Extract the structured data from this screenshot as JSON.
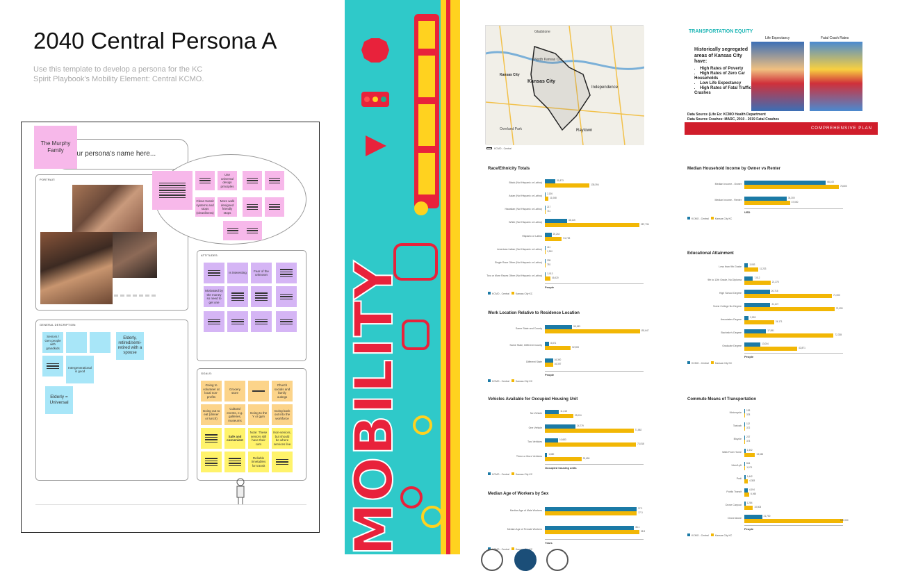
{
  "header": {
    "title": "2040 Central Persona A",
    "subtitle": "Use this template to develop a persona for the KC Spirit Playbook's Mobility Element: Central KCMO."
  },
  "persona_board": {
    "name_sticky": "The Murphy Family",
    "name_placeholder": "our persona's name here...",
    "sections": {
      "portrait": "PORTRAIT:",
      "attitudes": "ATTITUDES:",
      "general": "GENERAL DESCRIPTION:",
      "goals": "GOALS:"
    },
    "speech_notes": [
      "Use universal design principles",
      "Clean transit systems and stops (cleanliness)",
      "More walk designed friendly stops"
    ],
    "attitudes": [
      "Fear of the unknown",
      "Motivated by the money so need to get one",
      "",
      "",
      "Is interesting"
    ],
    "general": [
      "Seniors / Gen people with grandkids",
      "Elderly, retired/semi-retired with a spouse",
      "Intergenerational is good",
      "Elderly = Universal"
    ],
    "goals": [
      "Going to volunteer at local non-profits",
      "Grocery store",
      "Church socials and family outings",
      "Going out to eat (dinner or lunch)",
      "Cultural events, e.g. galleries, museums",
      "Going to the Y or gym",
      "Going back out into the workforce",
      "Safe and convenient",
      "Note: These seniors still have their cars",
      "Non-seniors, but should be where services live",
      "Reliable timetables for transit"
    ]
  },
  "poster": {
    "word": "MOBILITY",
    "colors": {
      "bg": "#2fc9c9",
      "red": "#e8223b",
      "yellow": "#ffd21f"
    }
  },
  "map": {
    "labels": [
      "Gladstone",
      "North Kansas City",
      "Kansas City",
      "Kansas City",
      "Independence",
      "Raytown",
      "Overland Park"
    ],
    "legend": "KCMO - Central"
  },
  "equity_panel": {
    "title": "TRANSPORTATION EQUITY",
    "life_expectancy": "Life Expectancy",
    "fatal_crash": "Fatal Crash Rates",
    "intro": "Historically segregated areas of Kansas City have:",
    "bullets": [
      "High Rates of Poverty",
      "High Rates of Zero Car Households",
      "Low Life Expectancy",
      "High Rates of Fatal Traffic Crashes"
    ],
    "source1": "Data Source (Life Ex: KCMO Health Department",
    "source2": "Data Source Crashes: MARC, 2010 - 2019 Fatal Crashes",
    "footer": "COMPREHENSIVE PLAN",
    "colors": {
      "footer": "#d01d2b",
      "title": "#1fb6b6"
    }
  },
  "chart_data": [
    {
      "type": "bar",
      "title": "Race/Ethnicity Totals",
      "categories": [
        "Black (Not Hispanic or Latino)",
        "Asian (Not Hispanic or Latino)",
        "Hawaiian (Not Hispanic or Latino)",
        "White (Not Hispanic or Latino)",
        "Hispanic or Latino",
        "American Indian (Not Hispanic or Latino)",
        "Single Race Other (Not Hispanic or Latino)",
        "Two or More Races Other (Not Hispanic or Latino)"
      ],
      "series": [
        {
          "name": "KCMO - Central",
          "values": [
            31873,
            2136,
            217,
            68115,
            20244,
            411,
            295,
            3013
          ]
        },
        {
          "name": "Kansas City KC",
          "values": [
            135394,
            11068,
            711,
            287736,
            51753,
            1300,
            781,
            16620
          ]
        }
      ],
      "xlabel": "People",
      "xlim": [
        0,
        300000
      ]
    },
    {
      "type": "bar",
      "title": "Work Location Relative to Residence Location",
      "categories": [
        "Same State and County",
        "Same State, Different County",
        "Different State"
      ],
      "series": [
        {
          "name": "KCMO - Central",
          "values": [
            55183,
            8871,
            16300
          ]
        },
        {
          "name": "Kansas City KC",
          "values": [
            192647,
            52393,
            16357
          ]
        }
      ],
      "xlabel": "People",
      "xlim": [
        0,
        200000
      ]
    },
    {
      "type": "bar",
      "title": "Vehicles Available for Occupied Housing Unit",
      "categories": [
        "No Vehicle",
        "One Vehicle",
        "Two Vehicles",
        "Three or More Vehicles"
      ],
      "series": [
        {
          "name": "KCMO - Central",
          "values": [
            11418,
            24779,
            10683,
            1880
          ]
        },
        {
          "name": "Kansas City KC",
          "values": [
            23024,
            71862,
            73818,
            29650
          ]
        }
      ],
      "xlabel": "Occupied housing units",
      "xlim": [
        0,
        80000
      ]
    },
    {
      "type": "bar",
      "title": "Median Age of Workers by Sex",
      "categories": [
        "Median Age of Male Workers",
        "Median Age of Female Workers"
      ],
      "series": [
        {
          "name": "KCMO - Central",
          "values": [
            37.2,
            36.1
          ]
        },
        {
          "name": "Kansas City KC",
          "values": [
            37.3,
            38.3
          ]
        }
      ],
      "xlabel": "Years",
      "xlim": [
        0,
        40
      ]
    },
    {
      "type": "bar",
      "title": "Median Household Income by Owner vs Renter",
      "categories": [
        "Median Income - Owner",
        "Median Income - Renter"
      ],
      "series": [
        {
          "name": "KCMO - Central",
          "values": [
            66100,
            34300
          ]
        },
        {
          "name": "Kansas City KC",
          "values": [
            76600,
            37000
          ]
        }
      ],
      "xlabel": "USD",
      "xlim": [
        0,
        80000
      ]
    },
    {
      "type": "bar",
      "title": "Educational Attainment",
      "categories": [
        "Less than 9th Grade",
        "9th to 12th Grade, No Diploma",
        "High School Degree",
        "Some College No Degree",
        "Associates Degree",
        "Bachelor's Degree",
        "Graduate Degree"
      ],
      "series": [
        {
          "name": "KCMO - Central",
          "values": [
            3083,
            7012,
            20715,
            21107,
            3593,
            17591,
            13004
          ]
        },
        {
          "name": "Kansas City KC",
          "values": [
            11233,
            21278,
            71000,
            73099,
            24171,
            72335,
            42871
          ]
        }
      ],
      "xlabel": "People",
      "xlim": [
        0,
        80000
      ]
    },
    {
      "type": "bar",
      "title": "Commute Means of Transportation",
      "categories": [
        "Motorcycle",
        "Taxicab",
        "Bicycle",
        "Walk From Home",
        "Uber/Lyft",
        "Pedi",
        "Public Transit",
        "Drove Carpool",
        "Drove Alone"
      ],
      "series": [
        {
          "name": "KCMO - Central",
          "values": [
            193,
            112,
            237,
            1402,
            844,
            1442,
            4194,
            1284,
            21700
          ]
        },
        {
          "name": "Kansas City KC",
          "values": [
            378,
            372,
            373,
            13045,
            1071,
            4383,
            6060,
            10503,
            120000
          ]
        }
      ],
      "xlabel": "People",
      "xlim": [
        0,
        120000
      ]
    }
  ],
  "legend": {
    "a": "KCMO - Central",
    "b": "Kansas City KC"
  },
  "colors": {
    "series1": "#1b7aa6",
    "series2": "#f2b705"
  }
}
